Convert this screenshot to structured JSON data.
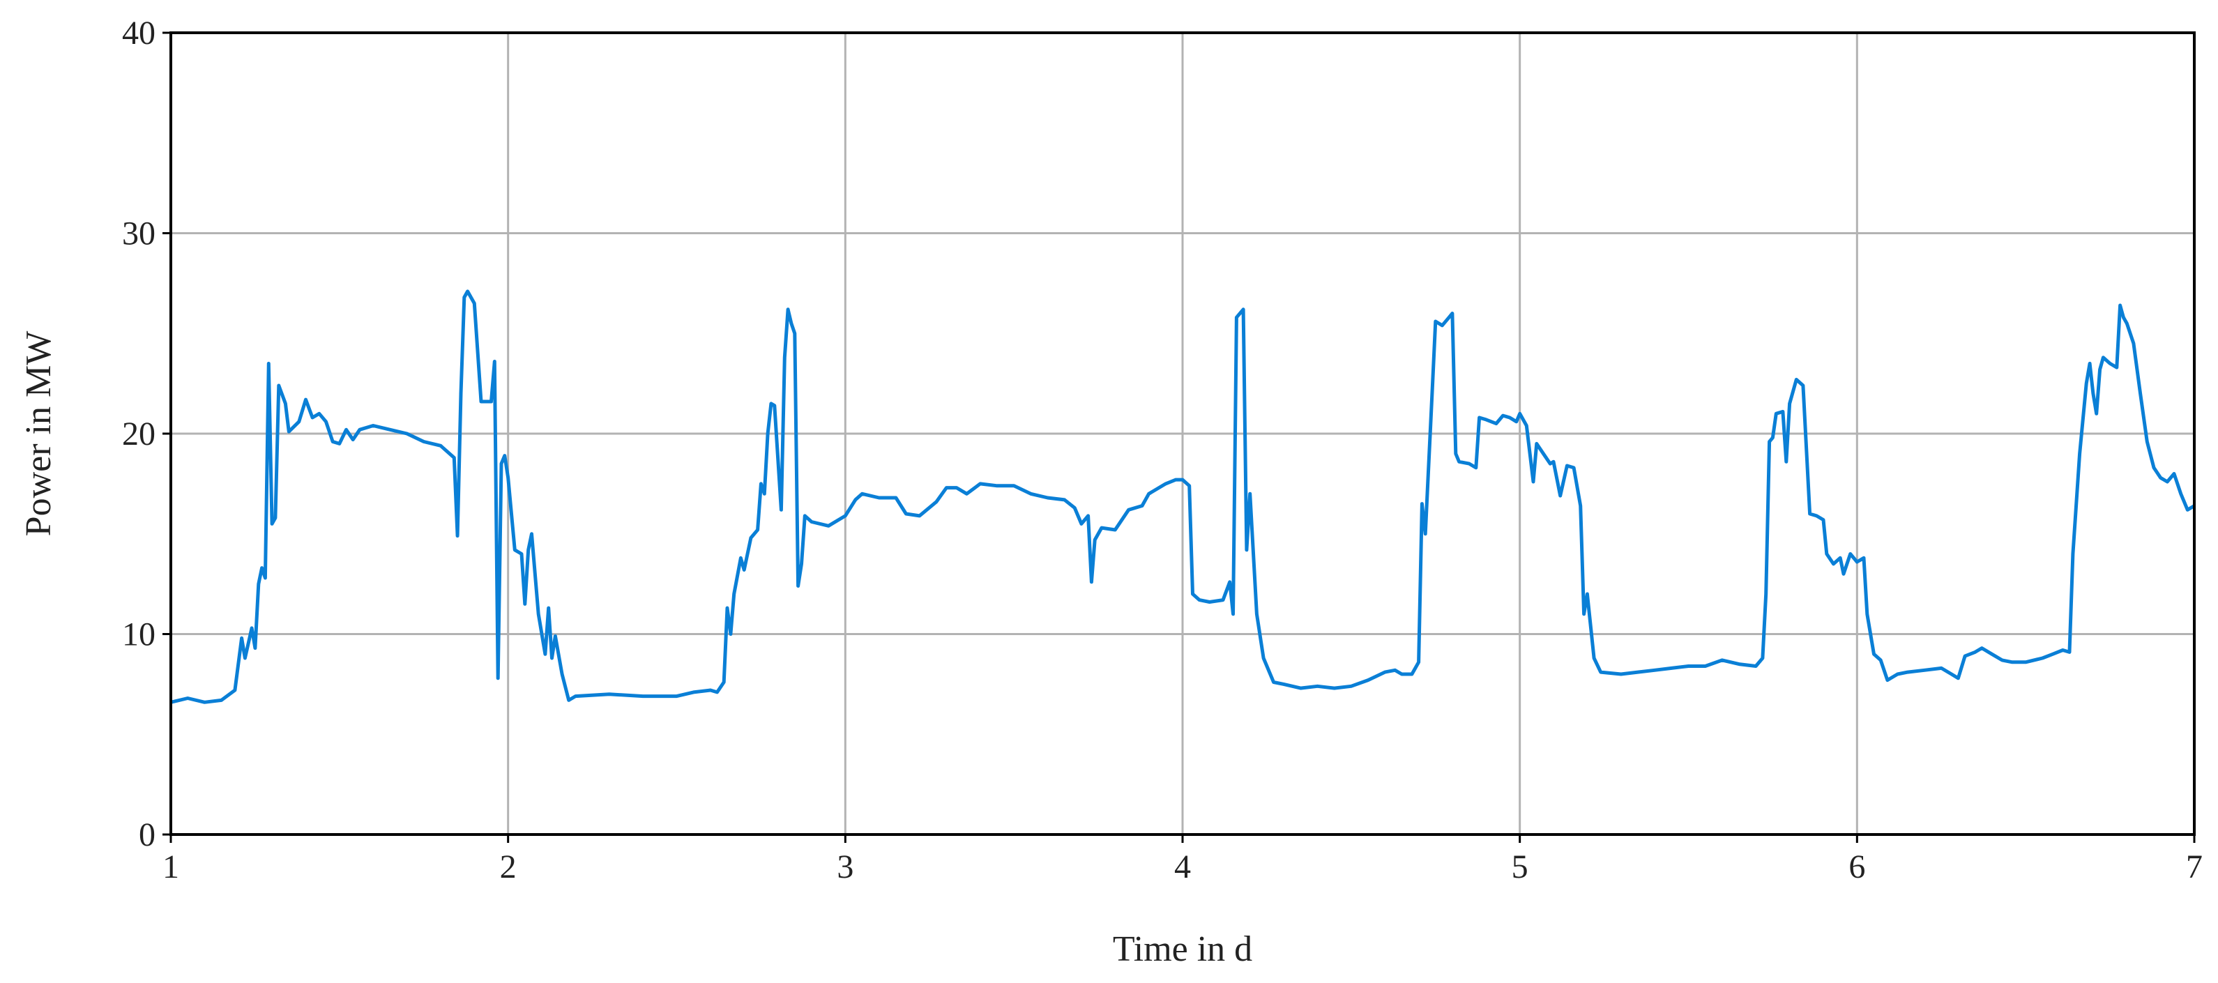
{
  "chart_data": {
    "type": "line",
    "x_label": "Time in d",
    "y_label": "Power in MW",
    "xlim": [
      1,
      7
    ],
    "ylim": [
      0,
      40
    ],
    "xticks": [
      1,
      2,
      3,
      4,
      5,
      6,
      7
    ],
    "yticks": [
      0,
      10,
      20,
      30,
      40
    ],
    "grid": true,
    "series": [
      {
        "color": "#0a7fd6",
        "x": [
          1.0,
          1.05,
          1.1,
          1.15,
          1.19,
          1.21,
          1.22,
          1.24,
          1.25,
          1.26,
          1.27,
          1.28,
          1.29,
          1.3,
          1.31,
          1.32,
          1.34,
          1.35,
          1.38,
          1.4,
          1.42,
          1.44,
          1.46,
          1.48,
          1.5,
          1.52,
          1.54,
          1.56,
          1.6,
          1.65,
          1.7,
          1.75,
          1.8,
          1.84,
          1.85,
          1.86,
          1.87,
          1.88,
          1.9,
          1.92,
          1.95,
          1.96,
          1.97,
          1.98,
          1.99,
          2.0,
          2.02,
          2.04,
          2.05,
          2.06,
          2.07,
          2.09,
          2.11,
          2.12,
          2.13,
          2.14,
          2.16,
          2.18,
          2.2,
          2.3,
          2.4,
          2.5,
          2.55,
          2.6,
          2.62,
          2.64,
          2.65,
          2.66,
          2.67,
          2.69,
          2.7,
          2.72,
          2.74,
          2.75,
          2.76,
          2.77,
          2.78,
          2.79,
          2.81,
          2.82,
          2.83,
          2.84,
          2.85,
          2.86,
          2.87,
          2.88,
          2.9,
          2.95,
          3.0,
          3.03,
          3.05,
          3.1,
          3.15,
          3.18,
          3.22,
          3.27,
          3.3,
          3.33,
          3.36,
          3.4,
          3.45,
          3.5,
          3.55,
          3.6,
          3.65,
          3.68,
          3.7,
          3.72,
          3.73,
          3.74,
          3.76,
          3.8,
          3.84,
          3.88,
          3.9,
          3.95,
          3.98,
          4.0,
          4.02,
          4.03,
          4.05,
          4.08,
          4.12,
          4.14,
          4.15,
          4.16,
          4.18,
          4.19,
          4.2,
          4.22,
          4.24,
          4.27,
          4.3,
          4.35,
          4.4,
          4.45,
          4.5,
          4.55,
          4.6,
          4.63,
          4.65,
          4.68,
          4.7,
          4.71,
          4.72,
          4.74,
          4.75,
          4.77,
          4.79,
          4.8,
          4.81,
          4.82,
          4.85,
          4.87,
          4.88,
          4.9,
          4.93,
          4.95,
          4.97,
          4.99,
          5.0,
          5.02,
          5.04,
          5.05,
          5.07,
          5.09,
          5.1,
          5.12,
          5.14,
          5.16,
          5.18,
          5.19,
          5.2,
          5.22,
          5.24,
          5.3,
          5.35,
          5.4,
          5.45,
          5.5,
          5.55,
          5.6,
          5.65,
          5.7,
          5.72,
          5.73,
          5.74,
          5.75,
          5.76,
          5.78,
          5.79,
          5.8,
          5.82,
          5.84,
          5.86,
          5.88,
          5.9,
          5.91,
          5.93,
          5.95,
          5.96,
          5.98,
          6.0,
          6.02,
          6.03,
          6.05,
          6.07,
          6.09,
          6.12,
          6.15,
          6.2,
          6.25,
          6.28,
          6.3,
          6.32,
          6.35,
          6.37,
          6.4,
          6.43,
          6.46,
          6.5,
          6.55,
          6.58,
          6.61,
          6.63,
          6.64,
          6.66,
          6.68,
          6.69,
          6.7,
          6.71,
          6.72,
          6.73,
          6.75,
          6.77,
          6.78,
          6.79,
          6.8,
          6.82,
          6.84,
          6.86,
          6.88,
          6.9,
          6.92,
          6.94,
          6.96,
          6.98,
          7.0
        ],
        "values": [
          6.6,
          6.8,
          6.6,
          6.7,
          7.2,
          9.8,
          8.8,
          10.3,
          9.3,
          12.5,
          13.3,
          12.8,
          23.5,
          15.5,
          15.8,
          22.4,
          21.5,
          20.1,
          20.6,
          21.7,
          20.8,
          21.0,
          20.6,
          19.6,
          19.5,
          20.2,
          19.7,
          20.2,
          20.4,
          20.2,
          20.0,
          19.6,
          19.4,
          18.8,
          14.9,
          22.0,
          26.8,
          27.1,
          26.5,
          21.6,
          21.6,
          23.6,
          7.8,
          18.5,
          18.9,
          17.8,
          14.2,
          14.0,
          11.5,
          14.2,
          15.0,
          11.0,
          9.0,
          11.3,
          8.8,
          9.9,
          8.0,
          6.7,
          6.9,
          7.0,
          6.9,
          6.9,
          7.1,
          7.2,
          7.1,
          7.6,
          11.3,
          10.0,
          12.0,
          13.8,
          13.2,
          14.8,
          15.2,
          17.5,
          17.0,
          20.0,
          21.5,
          21.4,
          16.2,
          23.8,
          26.2,
          25.5,
          25.0,
          12.4,
          13.5,
          15.9,
          15.6,
          15.4,
          15.9,
          16.7,
          17.0,
          16.8,
          16.8,
          16.0,
          15.9,
          16.6,
          17.3,
          17.3,
          17.0,
          17.5,
          17.4,
          17.4,
          17.0,
          16.8,
          16.7,
          16.3,
          15.5,
          15.9,
          12.6,
          14.7,
          15.3,
          15.2,
          16.2,
          16.4,
          17.0,
          17.5,
          17.7,
          17.7,
          17.4,
          12.0,
          11.7,
          11.6,
          11.7,
          12.6,
          11.0,
          25.8,
          26.2,
          14.2,
          17.0,
          11.0,
          8.8,
          7.6,
          7.5,
          7.3,
          7.4,
          7.3,
          7.4,
          7.7,
          8.1,
          8.2,
          8.0,
          8.0,
          8.6,
          16.5,
          15.0,
          22.0,
          25.6,
          25.4,
          25.8,
          26.0,
          19.0,
          18.6,
          18.5,
          18.3,
          20.8,
          20.7,
          20.5,
          20.9,
          20.8,
          20.6,
          21.0,
          20.4,
          17.6,
          19.5,
          19.0,
          18.5,
          18.6,
          16.9,
          18.4,
          18.3,
          16.4,
          11.0,
          12.0,
          8.8,
          8.1,
          8.0,
          8.1,
          8.2,
          8.3,
          8.4,
          8.4,
          8.7,
          8.5,
          8.4,
          8.8,
          12.0,
          19.6,
          19.8,
          21.0,
          21.1,
          18.6,
          21.5,
          22.7,
          22.4,
          16.0,
          15.9,
          15.7,
          14.0,
          13.5,
          13.8,
          13.0,
          14.0,
          13.6,
          13.8,
          11.0,
          9.0,
          8.7,
          7.7,
          8.0,
          8.1,
          8.2,
          8.3,
          8.0,
          7.8,
          8.9,
          9.1,
          9.3,
          9.0,
          8.7,
          8.6,
          8.6,
          8.8,
          9.0,
          9.2,
          9.1,
          14.0,
          19.0,
          22.5,
          23.5,
          22.0,
          21.0,
          23.2,
          23.8,
          23.5,
          23.3,
          26.4,
          25.8,
          25.5,
          24.5,
          22.0,
          19.6,
          18.3,
          17.8,
          17.6,
          18.0,
          17.0,
          16.2,
          16.4
        ]
      }
    ]
  }
}
